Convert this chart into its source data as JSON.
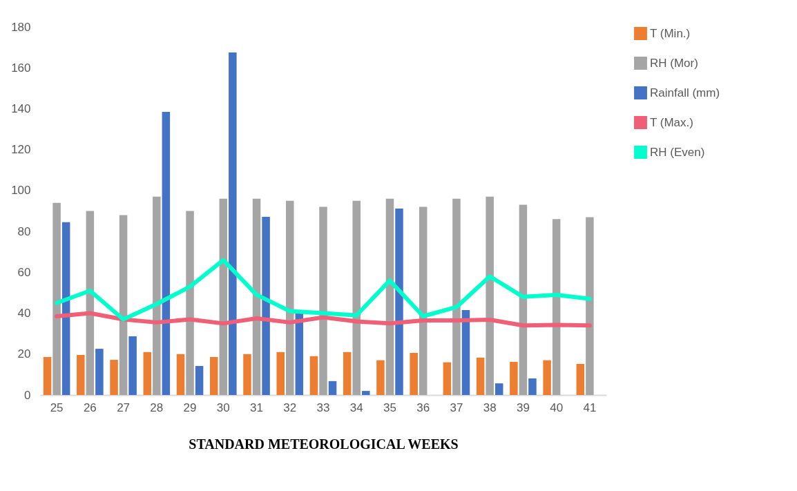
{
  "chart_data": {
    "type": "bar",
    "xlabel": "STANDARD METEOROLOGICAL WEEKS",
    "categories": [
      "25",
      "26",
      "27",
      "28",
      "29",
      "30",
      "31",
      "32",
      "33",
      "34",
      "35",
      "36",
      "37",
      "38",
      "39",
      "40",
      "41"
    ],
    "series": [
      {
        "name": "T (Min.)",
        "color": "#ed7d31",
        "values": [
          18.6,
          19.6,
          17.2,
          21,
          20,
          18.6,
          20,
          21,
          19,
          21,
          17,
          20.6,
          16,
          18.3,
          16.2,
          17,
          15.2
        ]
      },
      {
        "name": "RH (Mor)",
        "color": "#a5a5a5",
        "values": [
          94,
          90,
          88,
          97,
          90,
          96,
          96,
          95,
          92,
          95,
          96,
          92,
          96,
          97,
          93,
          86,
          87
        ]
      },
      {
        "name": "Rainfall (mm)",
        "color": "#4472c4",
        "values": [
          84.5,
          22.6,
          28.7,
          138.5,
          14.2,
          167.5,
          87.1,
          40,
          6.8,
          2,
          91.2,
          0,
          41.5,
          5.7,
          8.1,
          0,
          0
        ]
      },
      {
        "name": "T (Max.)",
        "type": "line",
        "color": "#ef5f78",
        "values": [
          38.5,
          40,
          37,
          35.5,
          37,
          35,
          37.5,
          35.5,
          38,
          36,
          35,
          36.5,
          36.5,
          36.8,
          34,
          34.3,
          34
        ]
      },
      {
        "name": "RH (Even)",
        "type": "line",
        "color": "#00ffcc",
        "values": [
          45,
          51,
          37,
          44.5,
          53,
          66,
          49,
          41,
          40,
          39,
          56,
          38.5,
          43,
          58,
          48,
          49,
          47
        ]
      }
    ],
    "ylim": [
      0,
      180
    ],
    "yticks": [
      0,
      20,
      40,
      60,
      80,
      100,
      120,
      140,
      160,
      180
    ],
    "grid": false,
    "legend": "right"
  }
}
